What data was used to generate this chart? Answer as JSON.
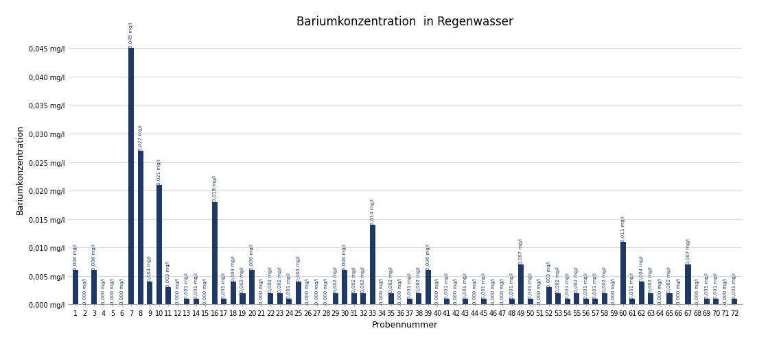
{
  "title": "Bariumkonzentration  in Regenwasser",
  "xlabel": "Probennummer",
  "ylabel": "Bariumkonzentration",
  "bar_color": "#1F3864",
  "values": [
    0.006,
    0.0,
    0.006,
    0.0,
    0.0,
    0.0,
    0.045,
    0.027,
    0.004,
    0.021,
    0.003,
    0.0,
    0.001,
    0.001,
    0.0,
    0.018,
    0.001,
    0.004,
    0.002,
    0.006,
    0.0,
    0.002,
    0.002,
    0.001,
    0.004,
    0.0,
    0.0,
    0.0,
    0.002,
    0.006,
    0.002,
    0.002,
    0.014,
    0.0,
    0.002,
    0.0,
    0.001,
    0.002,
    0.006,
    0.0,
    0.001,
    0.0,
    0.001,
    0.0,
    0.001,
    0.0,
    0.0,
    0.001,
    0.007,
    0.001,
    0.0,
    0.003,
    0.002,
    0.001,
    0.002,
    0.001,
    0.001,
    0.002,
    0.0,
    0.011,
    0.001,
    0.004,
    0.002,
    0.0,
    0.002,
    0.0,
    0.007,
    0.0,
    0.001,
    0.001,
    0.0,
    0.001
  ],
  "labels": [
    "1",
    "2",
    "3",
    "4",
    "5",
    "6",
    "7",
    "8",
    "9",
    "10",
    "11",
    "12",
    "13",
    "14",
    "15",
    "16",
    "17",
    "18",
    "19",
    "20",
    "21",
    "22",
    "23",
    "24",
    "25",
    "26",
    "27",
    "28",
    "29",
    "30",
    "31",
    "32",
    "33",
    "34",
    "35",
    "36",
    "37",
    "38",
    "39",
    "40",
    "41",
    "42",
    "43",
    "44",
    "45",
    "46",
    "47",
    "48",
    "49",
    "50",
    "51",
    "52",
    "53",
    "54",
    "55",
    "56",
    "57",
    "58",
    "59",
    "60",
    "61",
    "62",
    "63",
    "64",
    "65",
    "66",
    "67",
    "68",
    "69",
    "70",
    "71",
    "72"
  ],
  "ylim": [
    0.0,
    0.0475
  ],
  "yticks": [
    0.0,
    0.005,
    0.01,
    0.015,
    0.02,
    0.025,
    0.03,
    0.035,
    0.04,
    0.045
  ],
  "ytick_labels": [
    "0,000 mg/l",
    "0,005 mg/l",
    "0,010 mg/l",
    "0,015 mg/l",
    "0,020 mg/l",
    "0,025 mg/l",
    "0,030 mg/l",
    "0,035 mg/l",
    "0,040 mg/l",
    "0,045 mg/l"
  ],
  "background_color": "#FFFFFF",
  "grid_color": "#D9D9D9",
  "title_fontsize": 12,
  "axis_label_fontsize": 9,
  "tick_label_fontsize": 7,
  "bar_label_fontsize": 5,
  "bar_width": 0.6
}
